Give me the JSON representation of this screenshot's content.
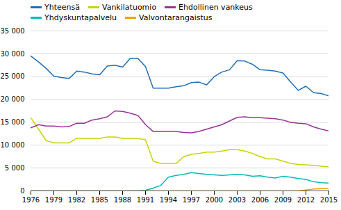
{
  "chart_data": {
    "type": "line",
    "x": [
      1976,
      1977,
      1978,
      1979,
      1980,
      1981,
      1982,
      1983,
      1984,
      1985,
      1986,
      1987,
      1988,
      1989,
      1990,
      1991,
      1992,
      1993,
      1994,
      1995,
      1996,
      1997,
      1998,
      1999,
      2000,
      2001,
      2002,
      2003,
      2004,
      2005,
      2006,
      2007,
      2008,
      2009,
      2010,
      2011,
      2012,
      2013,
      2014,
      2015
    ],
    "series": [
      {
        "name": "Yhteensä",
        "color": "#1f6eb5",
        "values": [
          29500,
          28200,
          26800,
          25100,
          24800,
          24600,
          26200,
          26000,
          25600,
          25400,
          27300,
          27500,
          27100,
          29000,
          29000,
          27200,
          22500,
          22500,
          22500,
          22800,
          23000,
          23700,
          23800,
          23200,
          25000,
          26000,
          26500,
          28500,
          28400,
          27700,
          26500,
          26400,
          26200,
          25800,
          23800,
          22000,
          22900,
          21500,
          21300,
          20800
        ]
      },
      {
        "name": "Vankilatuomio",
        "color": "#c8d400",
        "values": [
          16000,
          13500,
          11000,
          10500,
          10500,
          10500,
          11500,
          11500,
          11500,
          11500,
          11800,
          11800,
          11500,
          11500,
          11500,
          11200,
          6500,
          6000,
          6000,
          6000,
          7500,
          8000,
          8200,
          8500,
          8500,
          8700,
          9000,
          9000,
          8700,
          8200,
          7500,
          7000,
          7000,
          6500,
          6000,
          5800,
          5700,
          5600,
          5400,
          5300
        ]
      },
      {
        "name": "Ehdollinen vankeus",
        "color": "#993399",
        "values": [
          13800,
          14500,
          14200,
          14200,
          14000,
          14100,
          14800,
          14800,
          15500,
          15800,
          16200,
          17500,
          17400,
          17000,
          16500,
          14500,
          13000,
          13000,
          13000,
          13000,
          12800,
          12700,
          13000,
          13500,
          14000,
          14500,
          15300,
          16100,
          16200,
          16000,
          16000,
          15900,
          15800,
          15500,
          15000,
          14800,
          14700,
          14000,
          13500,
          13100
        ]
      },
      {
        "name": "Yhdyskuntapalvelu",
        "color": "#00bbbb",
        "values": [
          0,
          0,
          0,
          0,
          0,
          0,
          0,
          0,
          0,
          0,
          0,
          0,
          0,
          0,
          0,
          100,
          600,
          1200,
          3000,
          3400,
          3600,
          4000,
          3800,
          3600,
          3500,
          3400,
          3500,
          3600,
          3500,
          3200,
          3300,
          3000,
          2800,
          3200,
          3000,
          2700,
          2500,
          2000,
          1800,
          1700
        ]
      },
      {
        "name": "Valvontarangaistus",
        "color": "#f0a000",
        "values": [
          0,
          0,
          0,
          0,
          0,
          0,
          0,
          0,
          0,
          0,
          0,
          0,
          0,
          0,
          0,
          0,
          0,
          0,
          0,
          0,
          0,
          0,
          0,
          0,
          0,
          0,
          0,
          0,
          0,
          0,
          0,
          0,
          0,
          0,
          0,
          0,
          200,
          400,
          500,
          500
        ]
      }
    ],
    "xlim": [
      1976,
      2015
    ],
    "xticks": [
      1976,
      1979,
      1982,
      1985,
      1988,
      1991,
      1994,
      1997,
      2000,
      2003,
      2006,
      2009,
      2012,
      2015
    ],
    "ylim": [
      0,
      35000
    ],
    "yticks": [
      0,
      {
        "value": 5000,
        "label": "5 000"
      },
      {
        "value": 10000,
        "label": "10 000"
      },
      {
        "value": 15000,
        "label": "15 000"
      },
      {
        "value": 20000,
        "label": "20 000"
      },
      {
        "value": 25000,
        "label": "25 000"
      },
      {
        "value": 30000,
        "label": "30 000"
      },
      {
        "value": 35000,
        "label": "35 000"
      }
    ],
    "grid": true,
    "legend": "upper left"
  }
}
